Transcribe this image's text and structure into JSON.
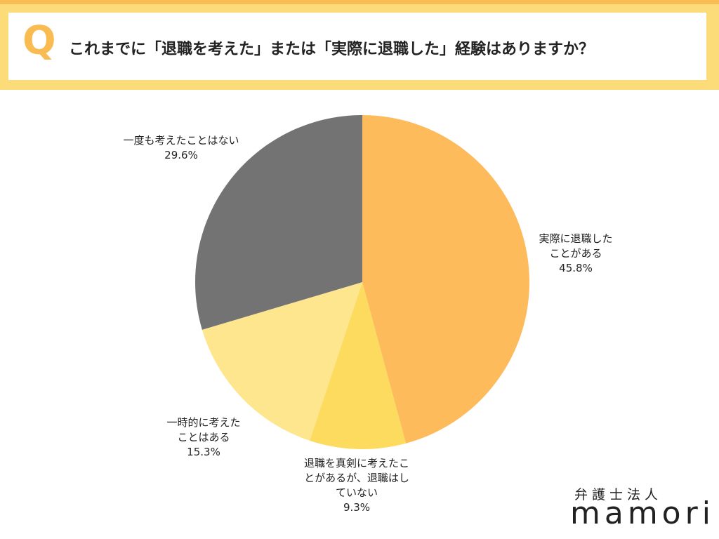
{
  "badge": "Q",
  "logo": {
    "sub": "弁護士法人",
    "name": "mamori"
  },
  "chart_data": {
    "type": "pie",
    "title": "これまでに「退職を考えた」または「実際に退職した」経験はありますか？",
    "categories": [
      "実際に退職した\nことがある",
      "退職を真剣に考えたこ\nとがあるが、退職はし\nていない",
      "一時的に考えた\nことはある",
      "一度も考えたことはない"
    ],
    "values": [
      45.8,
      9.3,
      15.3,
      29.6
    ],
    "value_labels": [
      "45.8%",
      "9.3%",
      "15.3%",
      "29.6%"
    ],
    "colors": [
      "#fdbb5c",
      "#fcdb5e",
      "#fde68e",
      "#737373"
    ]
  }
}
